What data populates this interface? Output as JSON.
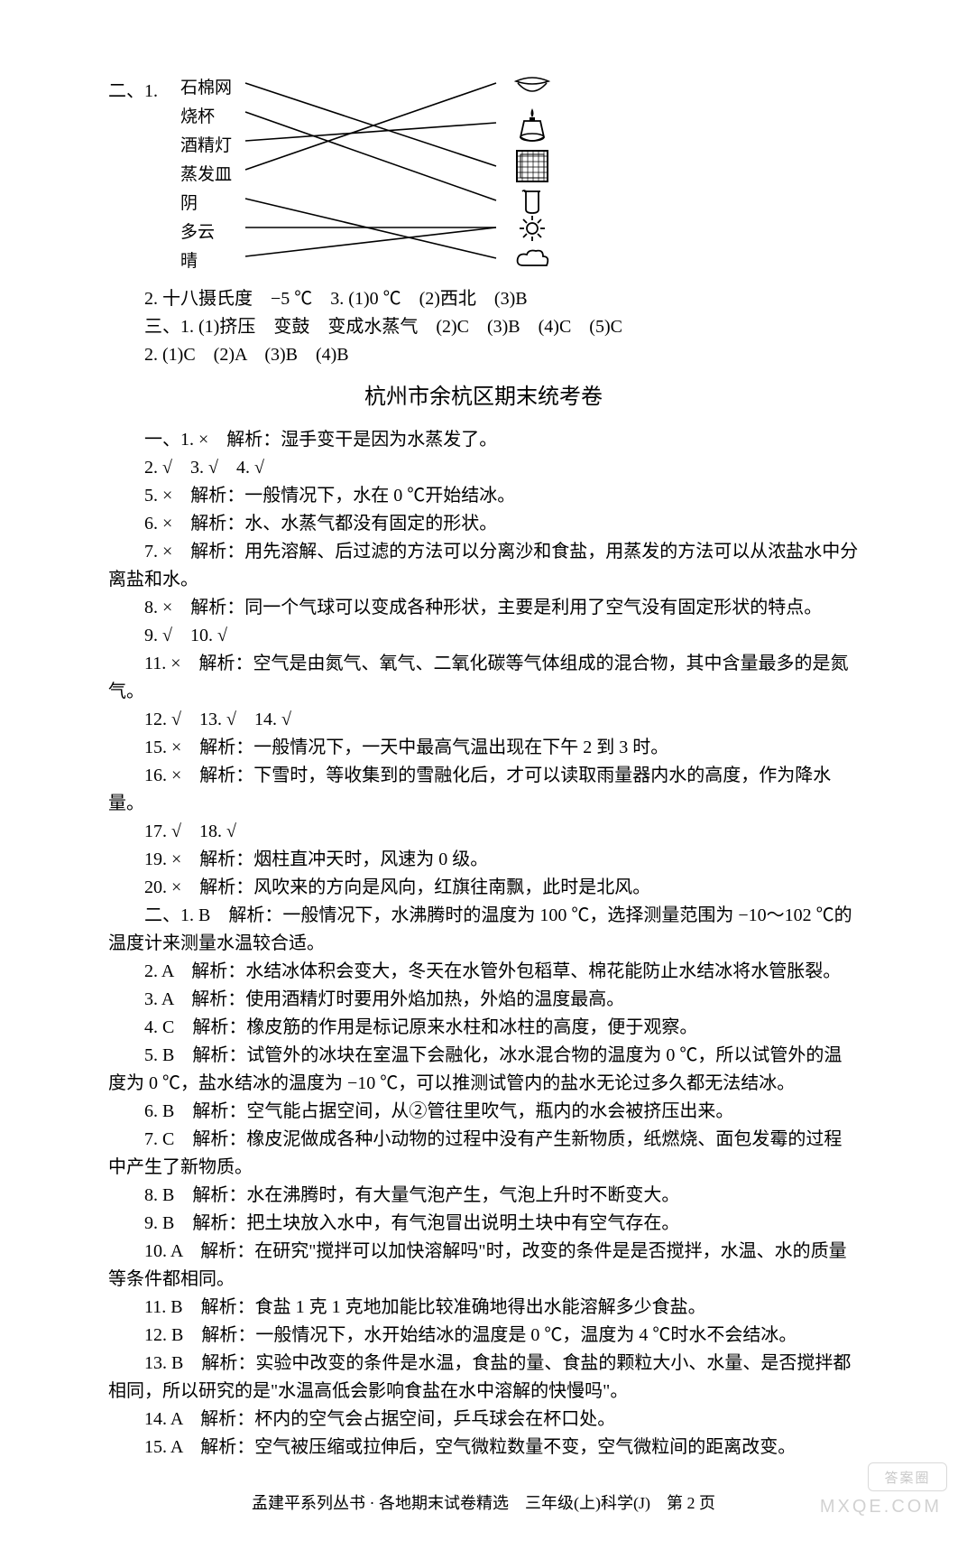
{
  "matching": {
    "section_label": "二、1.",
    "left_items": [
      "石棉网",
      "烧杯",
      "酒精灯",
      "蒸发皿",
      "阴",
      "多云",
      "晴"
    ],
    "icons": [
      "evap-dish",
      "alcohol-lamp",
      "asbestos-gauze",
      "beaker",
      "sun",
      "cloud-sun",
      "cloud"
    ],
    "line_color": "#000000"
  },
  "line_2_2": "2. 十八摄氏度　−5 ℃　3. (1)0 ℃　(2)西北　(3)B",
  "line_2_3": "三、1. (1)挤压　变鼓　变成水蒸气　(2)C　(3)B　(4)C　(5)C",
  "line_2_4": "2. (1)C　(2)A　(3)B　(4)B",
  "title": "杭州市余杭区期末统考卷",
  "body": [
    "一、1. ×　解析：湿手变干是因为水蒸发了。",
    "2. √　3. √　4. √",
    "5. ×　解析：一般情况下，水在 0 ℃开始结冰。",
    "6. ×　解析：水、水蒸气都没有固定的形状。",
    "7. ×　解析：用先溶解、后过滤的方法可以分离沙和食盐，用蒸发的方法可以从浓盐水中分离盐和水。",
    "8. ×　解析：同一个气球可以变成各种形状，主要是利用了空气没有固定形状的特点。",
    "9. √　10. √",
    "11. ×　解析：空气是由氮气、氧气、二氧化碳等气体组成的混合物，其中含量最多的是氮气。",
    "12. √　13. √　14. √",
    "15. ×　解析：一般情况下，一天中最高气温出现在下午 2 到 3 时。",
    "16. ×　解析：下雪时，等收集到的雪融化后，才可以读取雨量器内水的高度，作为降水量。",
    "17. √　18. √",
    "19. ×　解析：烟柱直冲天时，风速为 0 级。",
    "20. ×　解析：风吹来的方向是风向，红旗往南飘，此时是北风。",
    "二、1. B　解析：一般情况下，水沸腾时的温度为 100 ℃，选择测量范围为 −10～102 ℃的温度计来测量水温较合适。",
    "2. A　解析：水结冰体积会变大，冬天在水管外包稻草、棉花能防止水结冰将水管胀裂。",
    "3. A　解析：使用酒精灯时要用外焰加热，外焰的温度最高。",
    "4. C　解析：橡皮筋的作用是标记原来水柱和冰柱的高度，便于观察。",
    "5. B　解析：试管外的冰块在室温下会融化，冰水混合物的温度为 0 ℃，所以试管外的温度为 0 ℃，盐水结冰的温度为 −10 ℃，可以推测试管内的盐水无论过多久都无法结冰。",
    "6. B　解析：空气能占据空间，从②管往里吹气，瓶内的水会被挤压出来。",
    "7. C　解析：橡皮泥做成各种小动物的过程中没有产生新物质，纸燃烧、面包发霉的过程中产生了新物质。",
    "8. B　解析：水在沸腾时，有大量气泡产生，气泡上升时不断变大。",
    "9. B　解析：把土块放入水中，有气泡冒出说明土块中有空气存在。",
    "10. A　解析：在研究\"搅拌可以加快溶解吗\"时，改变的条件是是否搅拌，水温、水的质量等条件都相同。",
    "11. B　解析：食盐 1 克 1 克地加能比较准确地得出水能溶解多少食盐。",
    "12. B　解析：一般情况下，水开始结冰的温度是 0 ℃，温度为 4 ℃时水不会结冰。",
    "13. B　解析：实验中改变的条件是水温，食盐的量、食盐的颗粒大小、水量、是否搅拌都相同，所以研究的是\"水温高低会影响食盐在水中溶解的快慢吗\"。",
    "14. A　解析：杯内的空气会占据空间，乒乓球会在杯口处。",
    "15. A　解析：空气被压缩或拉伸后，空气微粒数量不变，空气微粒间的距离改变。"
  ],
  "footer": "孟建平系列丛书 · 各地期末试卷精选　三年级(上)科学(J)　第 2 页",
  "watermark": {
    "bubble": "答案圈",
    "text": "MXQE.COM"
  }
}
